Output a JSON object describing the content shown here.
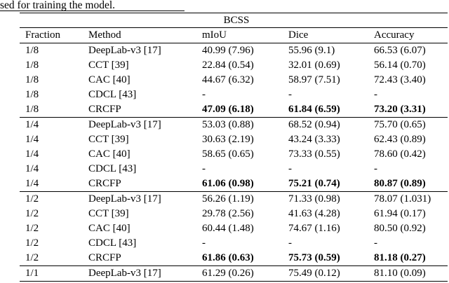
{
  "page": {
    "caption_fragment": "sed for training the model."
  },
  "table": {
    "dataset_header": "BCSS",
    "columns": [
      "Fraction",
      "Method",
      "mIoU",
      "Dice",
      "Accuracy"
    ],
    "rows": [
      {
        "cells": [
          "1/8",
          "DeepLab-v3 [17]",
          "40.99 (7.96)",
          "55.96 (9.1)",
          "66.53 (6.07)"
        ],
        "bold": false,
        "sep": false
      },
      {
        "cells": [
          "1/8",
          "CCT [39]",
          "22.84 (0.54)",
          "32.01 (0.69)",
          "56.14 (0.70)"
        ],
        "bold": false,
        "sep": false
      },
      {
        "cells": [
          "1/8",
          "CAC [40]",
          "44.67 (6.32)",
          "58.97 (7.51)",
          "72.43 (3.40)"
        ],
        "bold": false,
        "sep": false
      },
      {
        "cells": [
          "1/8",
          "CDCL [43]",
          "-",
          "-",
          "-"
        ],
        "bold": false,
        "sep": false
      },
      {
        "cells": [
          "1/8",
          "CRCFP",
          "47.09 (6.18)",
          "61.84 (6.59)",
          "73.20 (3.31)"
        ],
        "bold": true,
        "sep": false
      },
      {
        "cells": [
          "1/4",
          "DeepLab-v3 [17]",
          "53.03 (0.88)",
          "68.52 (0.94)",
          "75.70 (0.65)"
        ],
        "bold": false,
        "sep": true
      },
      {
        "cells": [
          "1/4",
          "CCT [39]",
          "30.63 (2.19)",
          "43.24 (3.33)",
          "62.43 (0.89)"
        ],
        "bold": false,
        "sep": false
      },
      {
        "cells": [
          "1/4",
          "CAC [40]",
          "58.65 (0.65)",
          "73.33 (0.55)",
          "78.60 (0.42)"
        ],
        "bold": false,
        "sep": false
      },
      {
        "cells": [
          "1/4",
          "CDCL [43]",
          "-",
          "-",
          "-"
        ],
        "bold": false,
        "sep": false
      },
      {
        "cells": [
          "1/4",
          "CRCFP",
          "61.06 (0.98)",
          "75.21 (0.74)",
          "80.87 (0.89)"
        ],
        "bold": true,
        "sep": false
      },
      {
        "cells": [
          "1/2",
          "DeepLab-v3 [17]",
          "56.26 (1.19)",
          "71.33 (0.98)",
          "78.07 (1.031)"
        ],
        "bold": false,
        "sep": true
      },
      {
        "cells": [
          "1/2",
          "CCT [39]",
          "29.78 (2.56)",
          "41.63 (4.28)",
          "61.94 (0.17)"
        ],
        "bold": false,
        "sep": false
      },
      {
        "cells": [
          "1/2",
          "CAC [40]",
          "60.44 (1.48)",
          "74.67 (1.16)",
          "80.50 (0.92)"
        ],
        "bold": false,
        "sep": false
      },
      {
        "cells": [
          "1/2",
          "CDCL [43]",
          "-",
          "-",
          "-"
        ],
        "bold": false,
        "sep": false
      },
      {
        "cells": [
          "1/2",
          "CRCFP",
          "61.86 (0.63)",
          "75.73 (0.59)",
          "81.18 (0.27)"
        ],
        "bold": true,
        "sep": false
      },
      {
        "cells": [
          "1/1",
          "DeepLab-v3 [17]",
          "61.29 (0.26)",
          "75.49 (0.12)",
          "81.10 (0.09)"
        ],
        "bold": false,
        "sep": true
      }
    ]
  }
}
